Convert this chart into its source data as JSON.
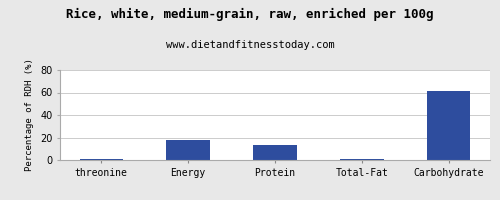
{
  "title": "Rice, white, medium-grain, raw, enriched per 100g",
  "subtitle": "www.dietandfitnesstoday.com",
  "ylabel": "Percentage of RDH (%)",
  "categories": [
    "threonine",
    "Energy",
    "Protein",
    "Total-Fat",
    "Carbohydrate"
  ],
  "values": [
    0.5,
    18.0,
    13.0,
    1.0,
    61.0
  ],
  "bar_color": "#2e4d9e",
  "ylim": [
    0,
    80
  ],
  "yticks": [
    0,
    20,
    40,
    60,
    80
  ],
  "background_color": "#e8e8e8",
  "plot_bg_color": "#ffffff",
  "title_fontsize": 9,
  "subtitle_fontsize": 7.5,
  "ylabel_fontsize": 6.5,
  "xlabel_fontsize": 7,
  "ytick_fontsize": 7
}
